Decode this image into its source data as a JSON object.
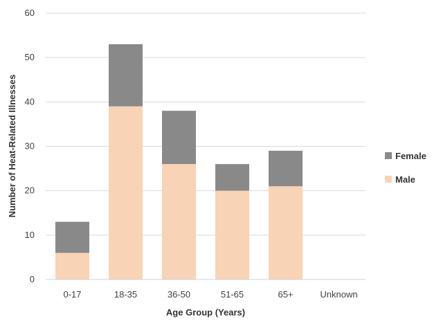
{
  "chart_data": {
    "type": "bar",
    "stacked": true,
    "title": "",
    "xlabel": "Age Group (Years)",
    "ylabel": "Number of Heat-Related Illnesses",
    "categories": [
      "0-17",
      "18-35",
      "36-50",
      "51-65",
      "65+",
      "Unknown"
    ],
    "series": [
      {
        "name": "Male",
        "values": [
          6,
          39,
          26,
          20,
          21,
          0
        ],
        "color": "#f9d3b5"
      },
      {
        "name": "Female",
        "values": [
          7,
          14,
          12,
          6,
          8,
          0
        ],
        "color": "#898989"
      }
    ],
    "ylim": [
      0,
      60
    ],
    "yticks": [
      0,
      10,
      20,
      30,
      40,
      50,
      60
    ],
    "grid": true,
    "legend_position": "right",
    "legend_order": [
      "Female",
      "Male"
    ]
  }
}
